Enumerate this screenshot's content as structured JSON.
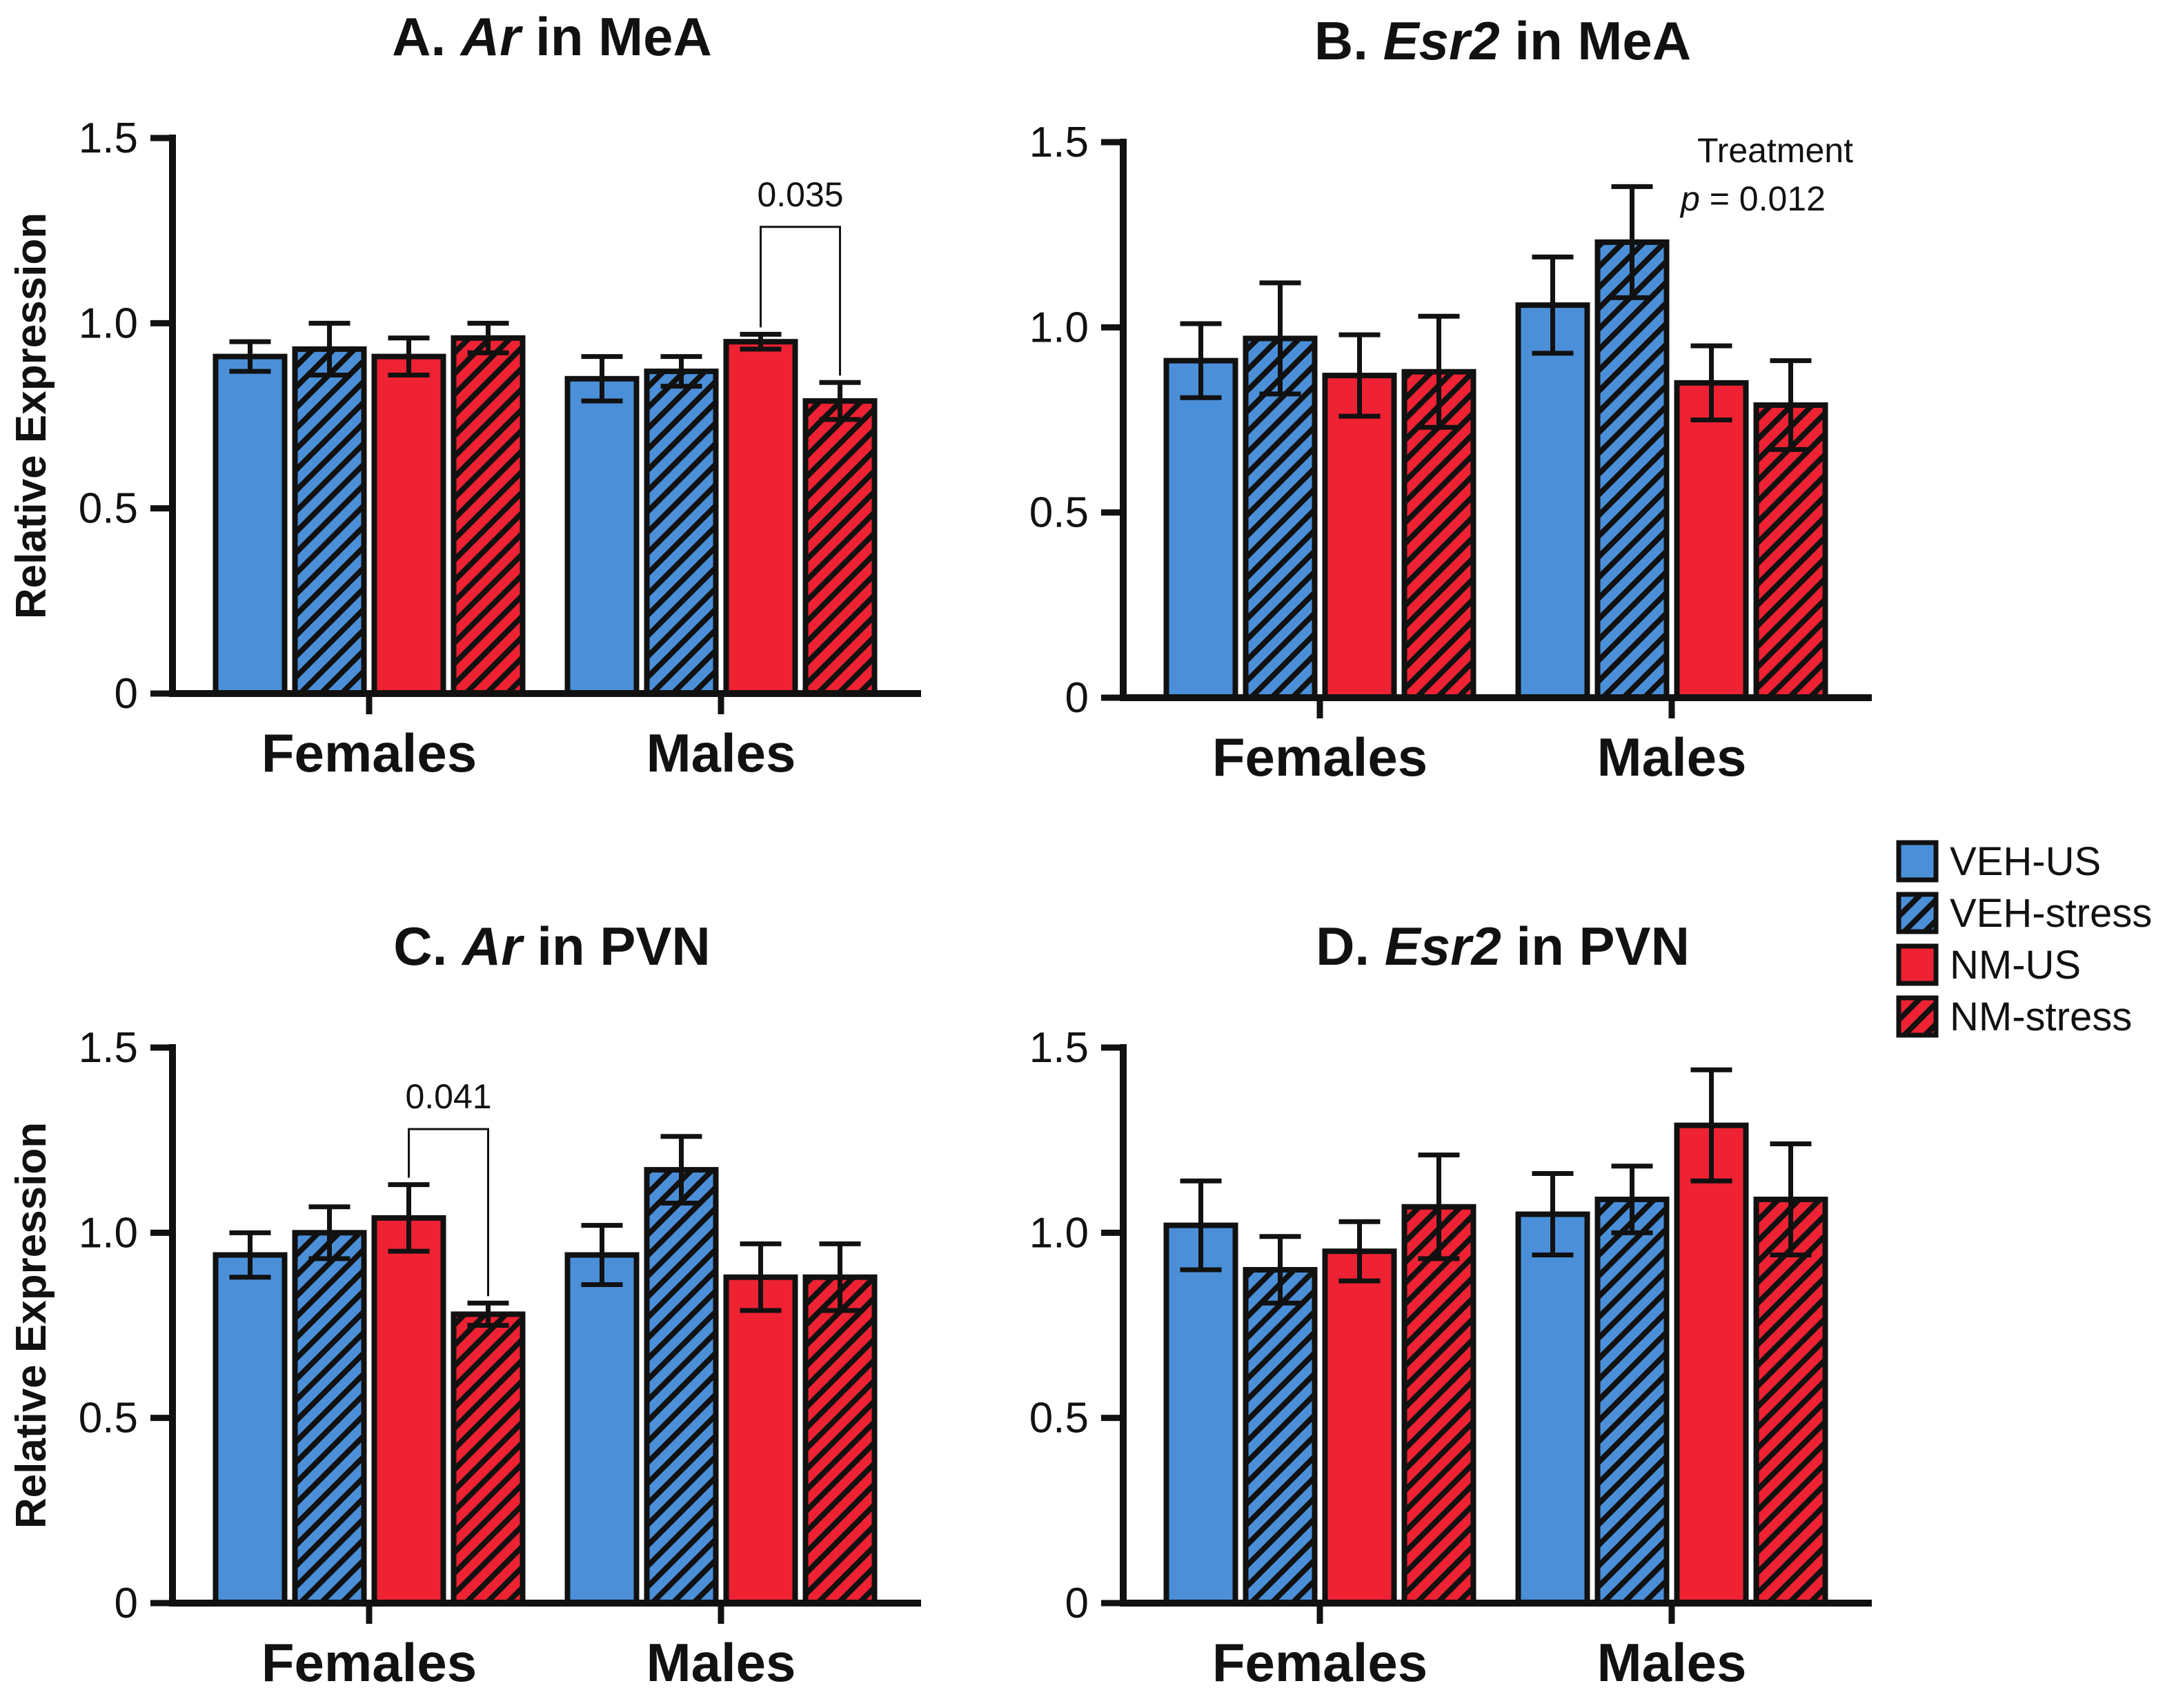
{
  "legend": [
    {
      "label": "VEH-US",
      "color": "#4b8fd8",
      "hatched": false
    },
    {
      "label": "VEH-stress",
      "color": "#4b8fd8",
      "hatched": true
    },
    {
      "label": "NM-US",
      "color": "#ee2233",
      "hatched": false
    },
    {
      "label": "NM-stress",
      "color": "#ee2233",
      "hatched": true
    }
  ],
  "chart_data": [
    {
      "type": "bar",
      "title_prefix": "A.",
      "title_gene": "Ar",
      "title_suffix": "in MeA",
      "ylabel": "Relative Expression",
      "ylim": [
        0,
        1.5
      ],
      "yticks": [
        "0",
        "0.5",
        "1.0",
        "1.5"
      ],
      "categories": [
        "Females",
        "Males"
      ],
      "series": [
        {
          "name": "VEH-US",
          "values": [
            0.91,
            0.85
          ],
          "errors": [
            0.04,
            0.06
          ]
        },
        {
          "name": "VEH-stress",
          "values": [
            0.93,
            0.87
          ],
          "errors": [
            0.07,
            0.04
          ]
        },
        {
          "name": "NM-US",
          "values": [
            0.91,
            0.95
          ],
          "errors": [
            0.05,
            0.02
          ]
        },
        {
          "name": "NM-stress",
          "values": [
            0.96,
            0.79
          ],
          "errors": [
            0.04,
            0.05
          ]
        }
      ],
      "annotations": [
        {
          "type": "bracket",
          "text": "0.035",
          "category": 1,
          "from_series": 2,
          "to_series": 3,
          "y": 1.26
        }
      ]
    },
    {
      "type": "bar",
      "title_prefix": "B.",
      "title_gene": "Esr2",
      "title_suffix": "in MeA",
      "ylabel": "",
      "ylim": [
        0,
        1.5
      ],
      "yticks": [
        "0",
        "0.5",
        "1.0",
        "1.5"
      ],
      "categories": [
        "Females",
        "Males"
      ],
      "series": [
        {
          "name": "VEH-US",
          "values": [
            0.91,
            1.06
          ],
          "errors": [
            0.1,
            0.13
          ]
        },
        {
          "name": "VEH-stress",
          "values": [
            0.97,
            1.23
          ],
          "errors": [
            0.15,
            0.15
          ]
        },
        {
          "name": "NM-US",
          "values": [
            0.87,
            0.85
          ],
          "errors": [
            0.11,
            0.1
          ]
        },
        {
          "name": "NM-stress",
          "values": [
            0.88,
            0.79
          ],
          "errors": [
            0.15,
            0.12
          ]
        }
      ],
      "annotations": [
        {
          "type": "text",
          "line1": "Treatment",
          "line2_italic": "p",
          "line2_rest": " = 0.012"
        }
      ]
    },
    {
      "type": "bar",
      "title_prefix": "C.",
      "title_gene": "Ar",
      "title_suffix": "in PVN",
      "ylabel": "Relative Expression",
      "ylim": [
        0,
        1.5
      ],
      "yticks": [
        "0",
        "0.5",
        "1.0",
        "1.5"
      ],
      "categories": [
        "Females",
        "Males"
      ],
      "series": [
        {
          "name": "VEH-US",
          "values": [
            0.94,
            0.94
          ],
          "errors": [
            0.06,
            0.08
          ]
        },
        {
          "name": "VEH-stress",
          "values": [
            1.0,
            1.17
          ],
          "errors": [
            0.07,
            0.09
          ]
        },
        {
          "name": "NM-US",
          "values": [
            1.04,
            0.88
          ],
          "errors": [
            0.09,
            0.09
          ]
        },
        {
          "name": "NM-stress",
          "values": [
            0.78,
            0.88
          ],
          "errors": [
            0.03,
            0.09
          ]
        }
      ],
      "annotations": [
        {
          "type": "bracket",
          "text": "0.041",
          "category": 0,
          "from_series": 2,
          "to_series": 3,
          "y": 1.28
        }
      ]
    },
    {
      "type": "bar",
      "title_prefix": "D.",
      "title_gene": "Esr2",
      "title_suffix": "in PVN",
      "ylabel": "",
      "ylim": [
        0,
        1.5
      ],
      "yticks": [
        "0",
        "0.5",
        "1.0",
        "1.5"
      ],
      "categories": [
        "Females",
        "Males"
      ],
      "series": [
        {
          "name": "VEH-US",
          "values": [
            1.02,
            1.05
          ],
          "errors": [
            0.12,
            0.11
          ]
        },
        {
          "name": "VEH-stress",
          "values": [
            0.9,
            1.09
          ],
          "errors": [
            0.09,
            0.09
          ]
        },
        {
          "name": "NM-US",
          "values": [
            0.95,
            1.29
          ],
          "errors": [
            0.08,
            0.15
          ]
        },
        {
          "name": "NM-stress",
          "values": [
            1.07,
            1.09
          ],
          "errors": [
            0.14,
            0.15
          ]
        }
      ],
      "annotations": []
    }
  ]
}
